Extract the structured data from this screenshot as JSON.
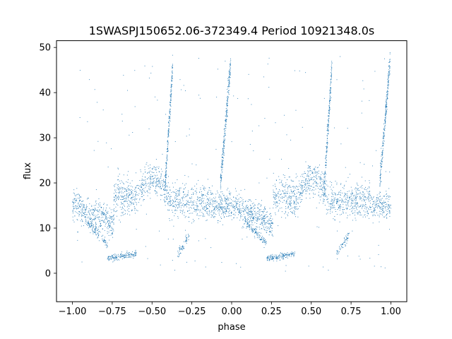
{
  "chart_data": {
    "type": "scatter",
    "title": "1SWASPJ150652.06-372349.4 Period 10921348.0s",
    "xlabel": "phase",
    "ylabel": "flux",
    "xlim": [
      -1.1,
      1.1
    ],
    "ylim": [
      -6.3,
      51.5
    ],
    "x_ticks": [
      -1.0,
      -0.75,
      -0.5,
      -0.25,
      0.0,
      0.25,
      0.5,
      0.75,
      1.0
    ],
    "x_tick_labels": [
      "−1.00",
      "−0.75",
      "−0.50",
      "−0.25",
      "0.00",
      "0.25",
      "0.50",
      "0.75",
      "1.00"
    ],
    "y_ticks": [
      0,
      10,
      20,
      30,
      40,
      50
    ],
    "y_tick_labels": [
      "0",
      "10",
      "20",
      "30",
      "40",
      "50"
    ],
    "grid": false,
    "marker_color": "#1f77b4",
    "series": [
      {
        "phase_range": [
          -1.0,
          1.0
        ],
        "repeats_every": 1.0,
        "description_points": [
          {
            "x": -0.97,
            "y": 15.0
          },
          {
            "x": -0.9,
            "y": 15.5
          },
          {
            "x": -0.8,
            "y": 10.5
          },
          {
            "x": -0.7,
            "y": 3.8
          },
          {
            "x": -0.62,
            "y": 4.5
          },
          {
            "x": -0.55,
            "y": 17.0
          },
          {
            "x": -0.45,
            "y": 19.5
          },
          {
            "x": -0.38,
            "y": 45.0
          },
          {
            "x": -0.3,
            "y": 15.0
          },
          {
            "x": -0.22,
            "y": 20.0
          },
          {
            "x": -0.1,
            "y": 17.0
          },
          {
            "x": -0.03,
            "y": 32.0
          },
          {
            "x": -0.01,
            "y": 45.0
          },
          {
            "x": 0.03,
            "y": 15.0
          },
          {
            "x": 0.1,
            "y": 13.0
          },
          {
            "x": 0.2,
            "y": 11.5
          },
          {
            "x": 0.3,
            "y": 3.8
          },
          {
            "x": 0.38,
            "y": 4.5
          },
          {
            "x": 0.45,
            "y": 17.0
          },
          {
            "x": 0.55,
            "y": 19.5
          },
          {
            "x": 0.62,
            "y": 45.0
          },
          {
            "x": 0.7,
            "y": 15.0
          },
          {
            "x": 0.78,
            "y": 20.0
          },
          {
            "x": 0.9,
            "y": 17.0
          },
          {
            "x": 0.97,
            "y": 32.0
          },
          {
            "x": 0.99,
            "y": 45.0
          }
        ]
      }
    ]
  }
}
